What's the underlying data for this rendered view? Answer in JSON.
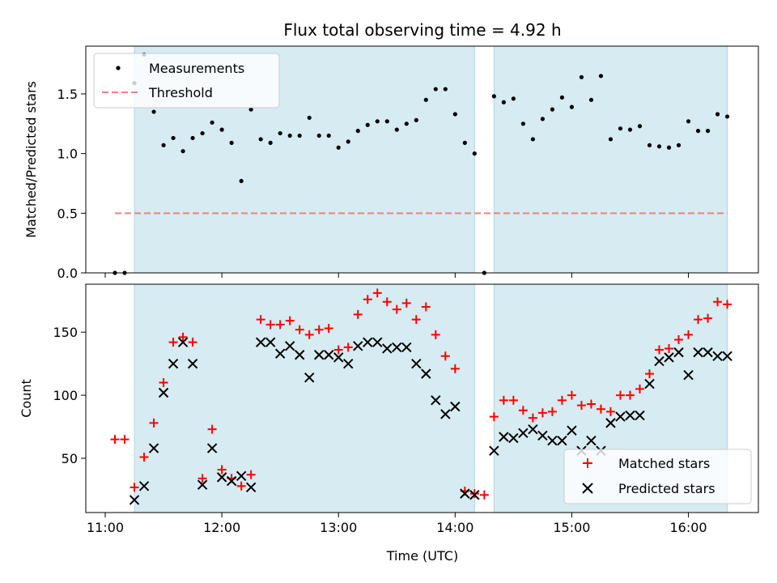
{
  "figure": {
    "title": "Flux total observing time = 4.92 h",
    "xlabel": "Time (UTC)",
    "x_ticks": [
      "11:00",
      "12:00",
      "13:00",
      "14:00",
      "15:00",
      "16:00"
    ],
    "x_tick_hours": [
      11,
      12,
      13,
      14,
      15,
      16
    ],
    "observing_windows": [
      {
        "start": "11:15",
        "end": "14:10"
      },
      {
        "start": "14:20",
        "end": "16:20"
      }
    ],
    "window_color": "#add8e6"
  },
  "chart_data": [
    {
      "type": "scatter",
      "ylabel": "Matched/Predicted stars",
      "xlim": [
        "10:50",
        "16:36"
      ],
      "ylim": [
        0,
        1.9
      ],
      "y_ticks": [
        "0.0",
        "0.5",
        "1.0",
        "1.5"
      ],
      "y_tick_values": [
        0,
        0.5,
        1.0,
        1.5
      ],
      "legend": {
        "placement": "upper-left",
        "entries": [
          "Measurements",
          "Threshold"
        ]
      },
      "threshold": {
        "name": "Threshold",
        "value": 0.5,
        "from": "11:05",
        "to": "16:20",
        "color": "#f08080"
      },
      "series": [
        {
          "name": "Measurements",
          "marker": "dot",
          "color": "#000000",
          "x": [
            "11:05",
            "11:10",
            "11:15",
            "11:20",
            "11:25",
            "11:30",
            "11:35",
            "11:40",
            "11:45",
            "11:50",
            "11:55",
            "12:00",
            "12:05",
            "12:10",
            "12:15",
            "12:20",
            "12:25",
            "12:30",
            "12:35",
            "12:40",
            "12:45",
            "12:50",
            "12:55",
            "13:00",
            "13:05",
            "13:10",
            "13:15",
            "13:20",
            "13:25",
            "13:30",
            "13:35",
            "13:40",
            "13:45",
            "13:50",
            "13:55",
            "14:00",
            "14:05",
            "14:10",
            "14:15",
            "14:20",
            "14:25",
            "14:30",
            "14:35",
            "14:40",
            "14:45",
            "14:50",
            "14:55",
            "15:00",
            "15:05",
            "15:10",
            "15:15",
            "15:20",
            "15:25",
            "15:30",
            "15:35",
            "15:40",
            "15:45",
            "15:50",
            "15:55",
            "16:00",
            "16:05",
            "16:10",
            "16:15",
            "16:20"
          ],
          "y": [
            0.0,
            0.0,
            1.59,
            1.83,
            1.35,
            1.07,
            1.13,
            1.02,
            1.13,
            1.17,
            1.26,
            1.2,
            1.09,
            0.77,
            1.37,
            1.12,
            1.09,
            1.17,
            1.15,
            1.15,
            1.3,
            1.15,
            1.15,
            1.05,
            1.1,
            1.19,
            1.24,
            1.27,
            1.27,
            1.2,
            1.25,
            1.28,
            1.45,
            1.54,
            1.54,
            1.33,
            1.09,
            1.0,
            0.0,
            1.48,
            1.43,
            1.46,
            1.25,
            1.12,
            1.29,
            1.37,
            1.47,
            1.39,
            1.64,
            1.45,
            1.65,
            1.12,
            1.21,
            1.2,
            1.23,
            1.07,
            1.06,
            1.05,
            1.07,
            1.27,
            1.19,
            1.19,
            1.33,
            1.31
          ]
        }
      ]
    },
    {
      "type": "scatter",
      "ylabel": "Count",
      "xlim": [
        "10:50",
        "16:36"
      ],
      "ylim": [
        7,
        188
      ],
      "y_ticks": [
        "50",
        "100",
        "150"
      ],
      "y_tick_values": [
        50,
        100,
        150
      ],
      "legend": {
        "placement": "lower-right",
        "entries": [
          "Matched stars",
          "Predicted stars"
        ]
      },
      "x": [
        "11:05",
        "11:10",
        "11:15",
        "11:20",
        "11:25",
        "11:30",
        "11:35",
        "11:40",
        "11:45",
        "11:50",
        "11:55",
        "12:00",
        "12:05",
        "12:10",
        "12:15",
        "12:20",
        "12:25",
        "12:30",
        "12:35",
        "12:40",
        "12:45",
        "12:50",
        "12:55",
        "13:00",
        "13:05",
        "13:10",
        "13:15",
        "13:20",
        "13:25",
        "13:30",
        "13:35",
        "13:40",
        "13:45",
        "13:50",
        "13:55",
        "14:00",
        "14:05",
        "14:10",
        "14:15",
        "14:20",
        "14:25",
        "14:30",
        "14:35",
        "14:40",
        "14:45",
        "14:50",
        "14:55",
        "15:00",
        "15:05",
        "15:10",
        "15:15",
        "15:20",
        "15:25",
        "15:30",
        "15:35",
        "15:40",
        "15:45",
        "15:50",
        "15:55",
        "16:00",
        "16:05",
        "16:10",
        "16:15",
        "16:20"
      ],
      "series": [
        {
          "name": "Matched stars",
          "marker": "plus",
          "color": "#ff0000",
          "y": [
            65,
            65,
            27,
            51,
            78,
            110,
            142,
            146,
            142,
            34,
            73,
            41,
            34,
            28,
            37,
            160,
            156,
            156,
            159,
            152,
            148,
            152,
            153,
            136,
            138,
            164,
            176,
            181,
            174,
            168,
            173,
            160,
            170,
            148,
            131,
            121,
            24,
            22,
            21,
            83,
            96,
            96,
            88,
            82,
            86,
            87,
            96,
            100,
            92,
            93,
            89,
            87,
            100,
            100,
            105,
            117,
            136,
            137,
            144,
            148,
            160,
            161,
            174,
            172
          ]
        },
        {
          "name": "Predicted stars",
          "marker": "x",
          "color": "#000000",
          "y": [
            null,
            null,
            17,
            28,
            58,
            102,
            125,
            142,
            125,
            29,
            58,
            35,
            32,
            36,
            27,
            142,
            142,
            133,
            139,
            132,
            114,
            132,
            132,
            130,
            125,
            139,
            142,
            142,
            137,
            138,
            138,
            125,
            117,
            96,
            85,
            91,
            22,
            21,
            null,
            56,
            67,
            66,
            70,
            73,
            68,
            64,
            64,
            72,
            56,
            64,
            56,
            78,
            83,
            84,
            84,
            109,
            127,
            130,
            134,
            116,
            134,
            134,
            131,
            131
          ]
        }
      ]
    }
  ]
}
